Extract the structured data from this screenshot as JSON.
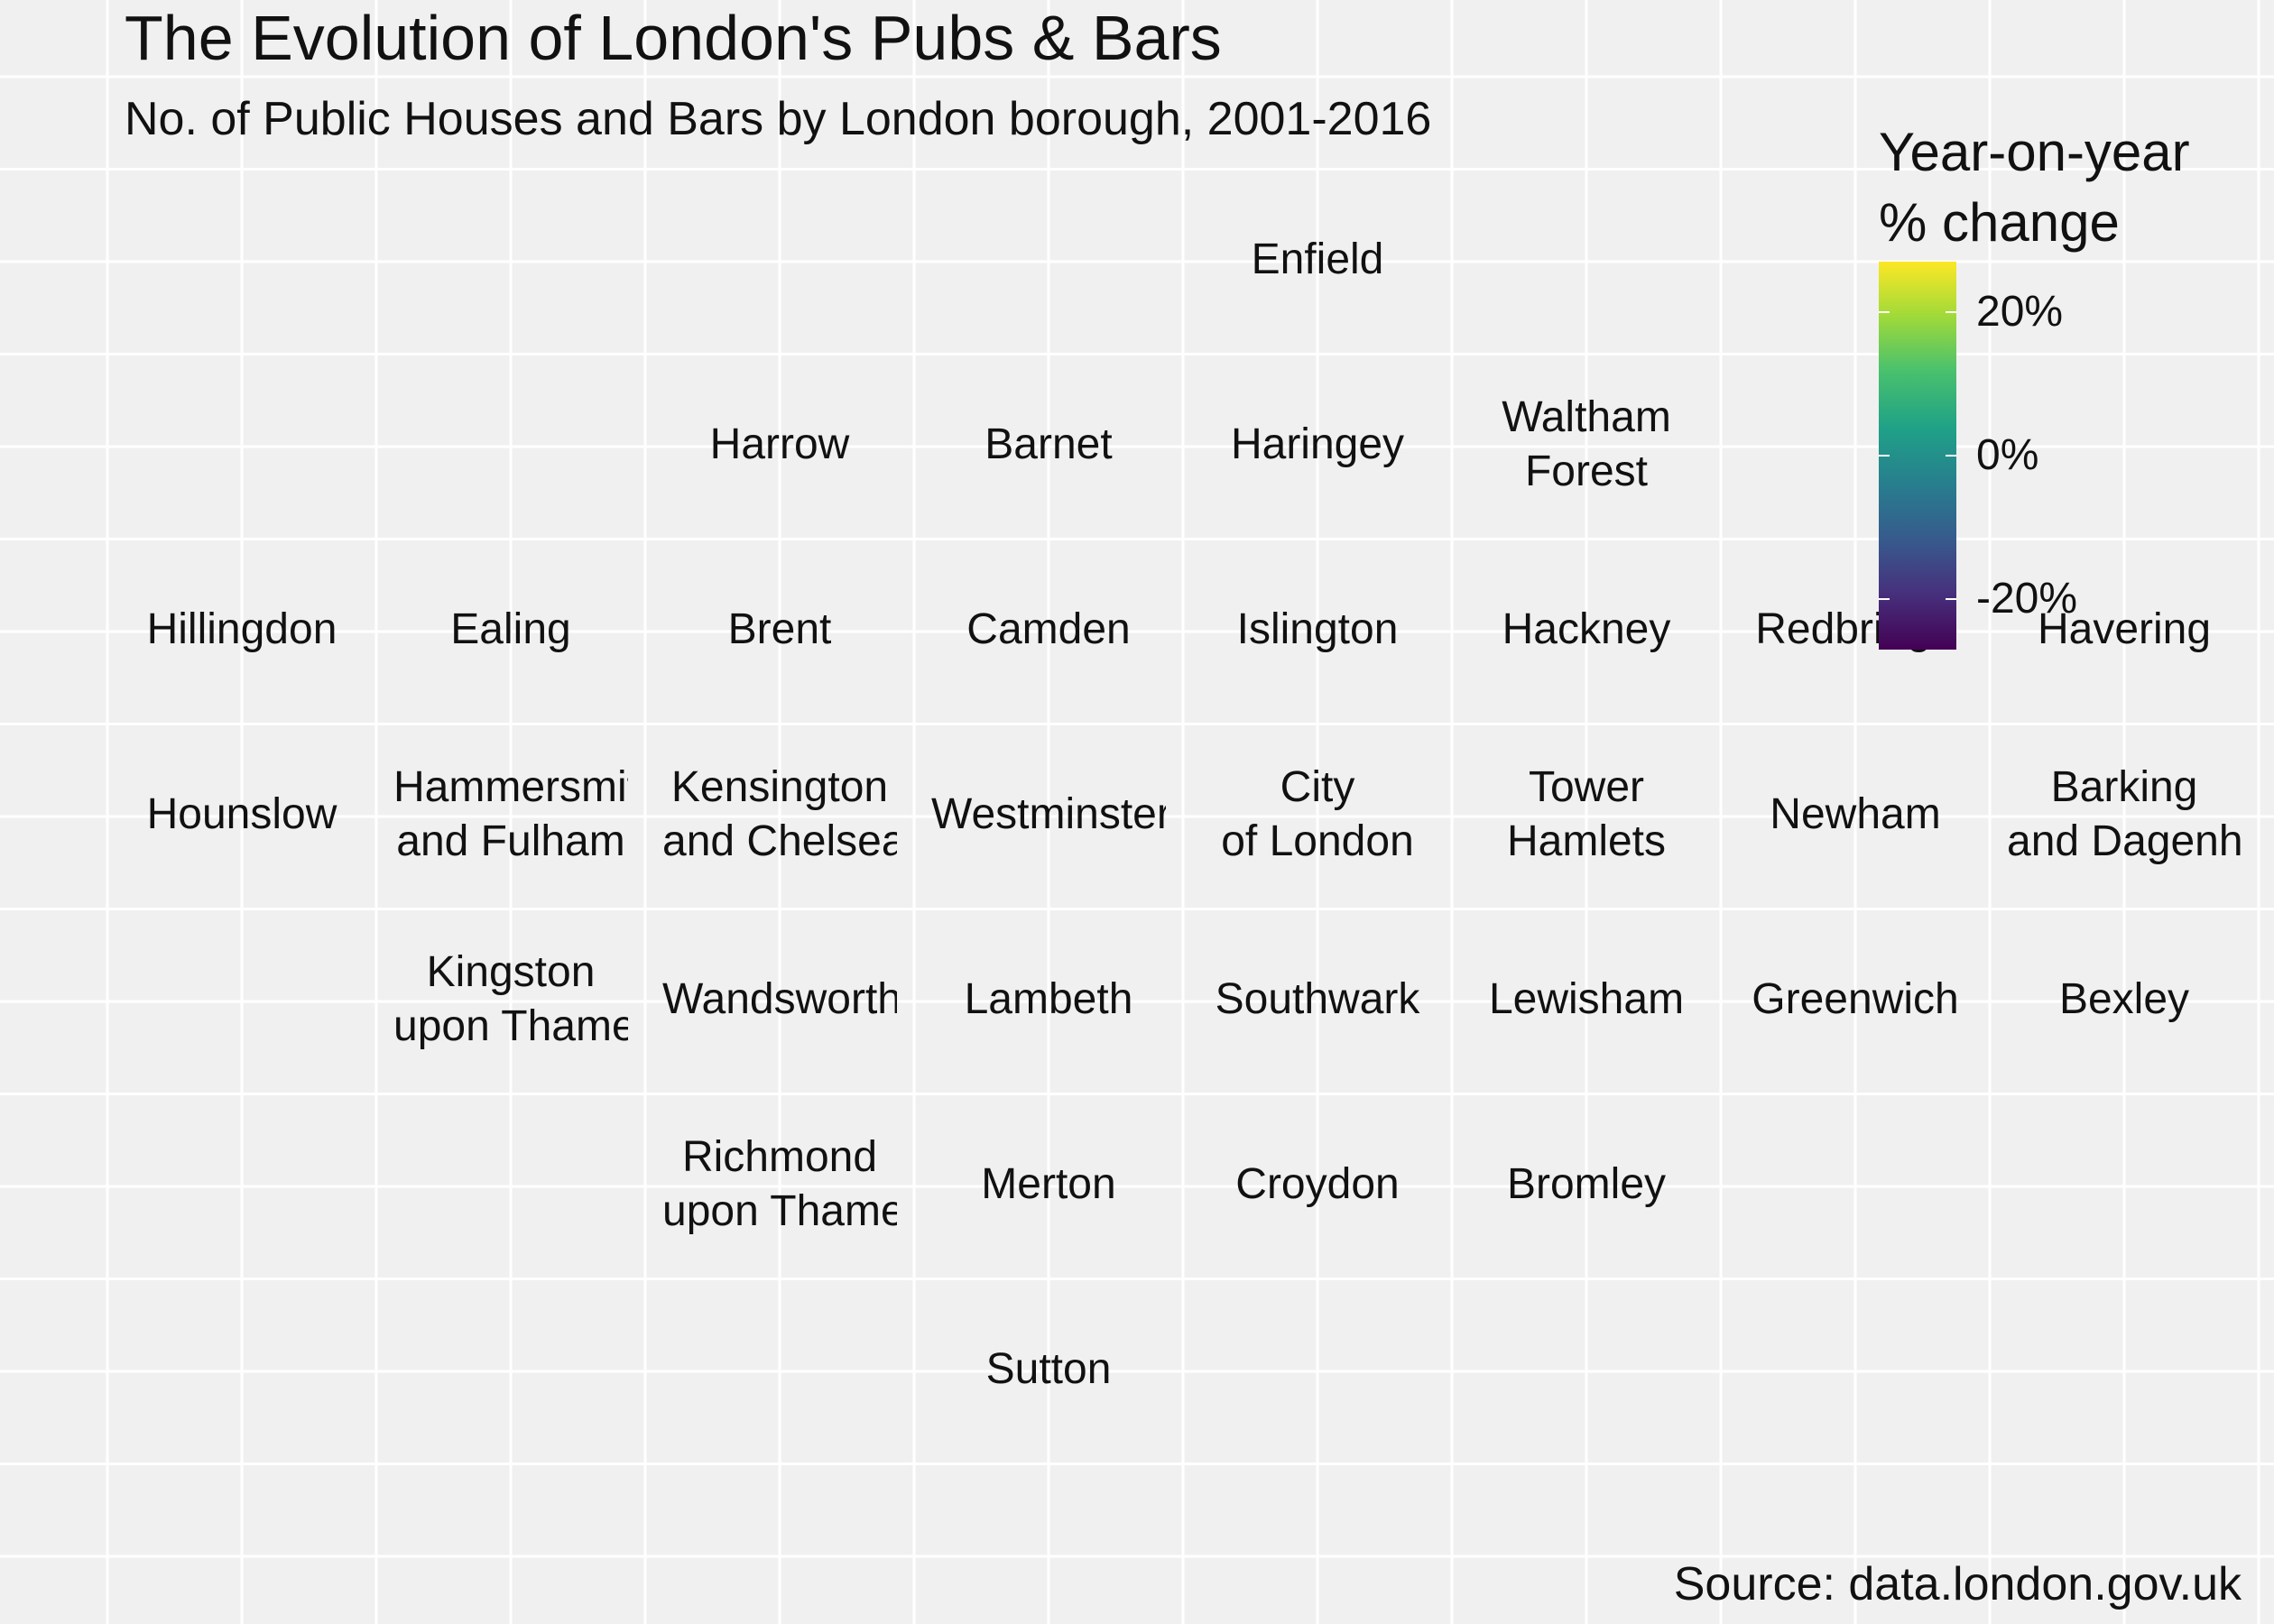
{
  "chart_data": {
    "type": "heatmap",
    "title": "The Evolution of London's Pubs & Bars",
    "subtitle": "No. of Public Houses and Bars by London borough, 2001-2016",
    "caption": "Source: data.london.gov.uk",
    "legend": {
      "title_lines": [
        "Year-on-year",
        "% change"
      ],
      "tick_labels": [
        "20%",
        "0%",
        "-20%"
      ],
      "tick_values": [
        20,
        0,
        -20
      ],
      "range": [
        -27,
        27
      ],
      "palette": "viridis",
      "placement": "top-right"
    },
    "grid": true,
    "tiles": [
      {
        "col": 5,
        "row": 1,
        "lines": [
          "Enfield"
        ]
      },
      {
        "col": 3,
        "row": 2,
        "lines": [
          "Harrow"
        ]
      },
      {
        "col": 4,
        "row": 2,
        "lines": [
          "Barnet"
        ]
      },
      {
        "col": 5,
        "row": 2,
        "lines": [
          "Haringey"
        ]
      },
      {
        "col": 6,
        "row": 2,
        "lines": [
          "Waltham",
          "Forest"
        ]
      },
      {
        "col": 1,
        "row": 3,
        "lines": [
          "Hillingdon"
        ]
      },
      {
        "col": 2,
        "row": 3,
        "lines": [
          "Ealing"
        ]
      },
      {
        "col": 3,
        "row": 3,
        "lines": [
          "Brent"
        ]
      },
      {
        "col": 4,
        "row": 3,
        "lines": [
          "Camden"
        ]
      },
      {
        "col": 5,
        "row": 3,
        "lines": [
          "Islington"
        ]
      },
      {
        "col": 6,
        "row": 3,
        "lines": [
          "Hackney"
        ]
      },
      {
        "col": 7,
        "row": 3,
        "lines": [
          "Redbridge"
        ]
      },
      {
        "col": 8,
        "row": 3,
        "lines": [
          "Havering"
        ]
      },
      {
        "col": 1,
        "row": 4,
        "lines": [
          "Hounslow"
        ]
      },
      {
        "col": 2,
        "row": 4,
        "lines": [
          "Hammersmith",
          "and Fulham"
        ]
      },
      {
        "col": 3,
        "row": 4,
        "lines": [
          "Kensington",
          "and Chelsea"
        ]
      },
      {
        "col": 4,
        "row": 4,
        "lines": [
          "Westminster"
        ]
      },
      {
        "col": 5,
        "row": 4,
        "lines": [
          "City",
          "of London"
        ]
      },
      {
        "col": 6,
        "row": 4,
        "lines": [
          "Tower",
          "Hamlets"
        ]
      },
      {
        "col": 7,
        "row": 4,
        "lines": [
          "Newham"
        ]
      },
      {
        "col": 8,
        "row": 4,
        "lines": [
          "Barking",
          "and Dagenham"
        ]
      },
      {
        "col": 2,
        "row": 5,
        "lines": [
          "Kingston",
          "upon Thames"
        ]
      },
      {
        "col": 3,
        "row": 5,
        "lines": [
          "Wandsworth"
        ]
      },
      {
        "col": 4,
        "row": 5,
        "lines": [
          "Lambeth"
        ]
      },
      {
        "col": 5,
        "row": 5,
        "lines": [
          "Southwark"
        ]
      },
      {
        "col": 6,
        "row": 5,
        "lines": [
          "Lewisham"
        ]
      },
      {
        "col": 7,
        "row": 5,
        "lines": [
          "Greenwich"
        ]
      },
      {
        "col": 8,
        "row": 5,
        "lines": [
          "Bexley"
        ]
      },
      {
        "col": 3,
        "row": 6,
        "lines": [
          "Richmond",
          "upon Thames"
        ]
      },
      {
        "col": 4,
        "row": 6,
        "lines": [
          "Merton"
        ]
      },
      {
        "col": 5,
        "row": 6,
        "lines": [
          "Croydon"
        ]
      },
      {
        "col": 6,
        "row": 6,
        "lines": [
          "Bromley"
        ]
      },
      {
        "col": 4,
        "row": 7,
        "lines": [
          "Sutton"
        ]
      }
    ]
  }
}
